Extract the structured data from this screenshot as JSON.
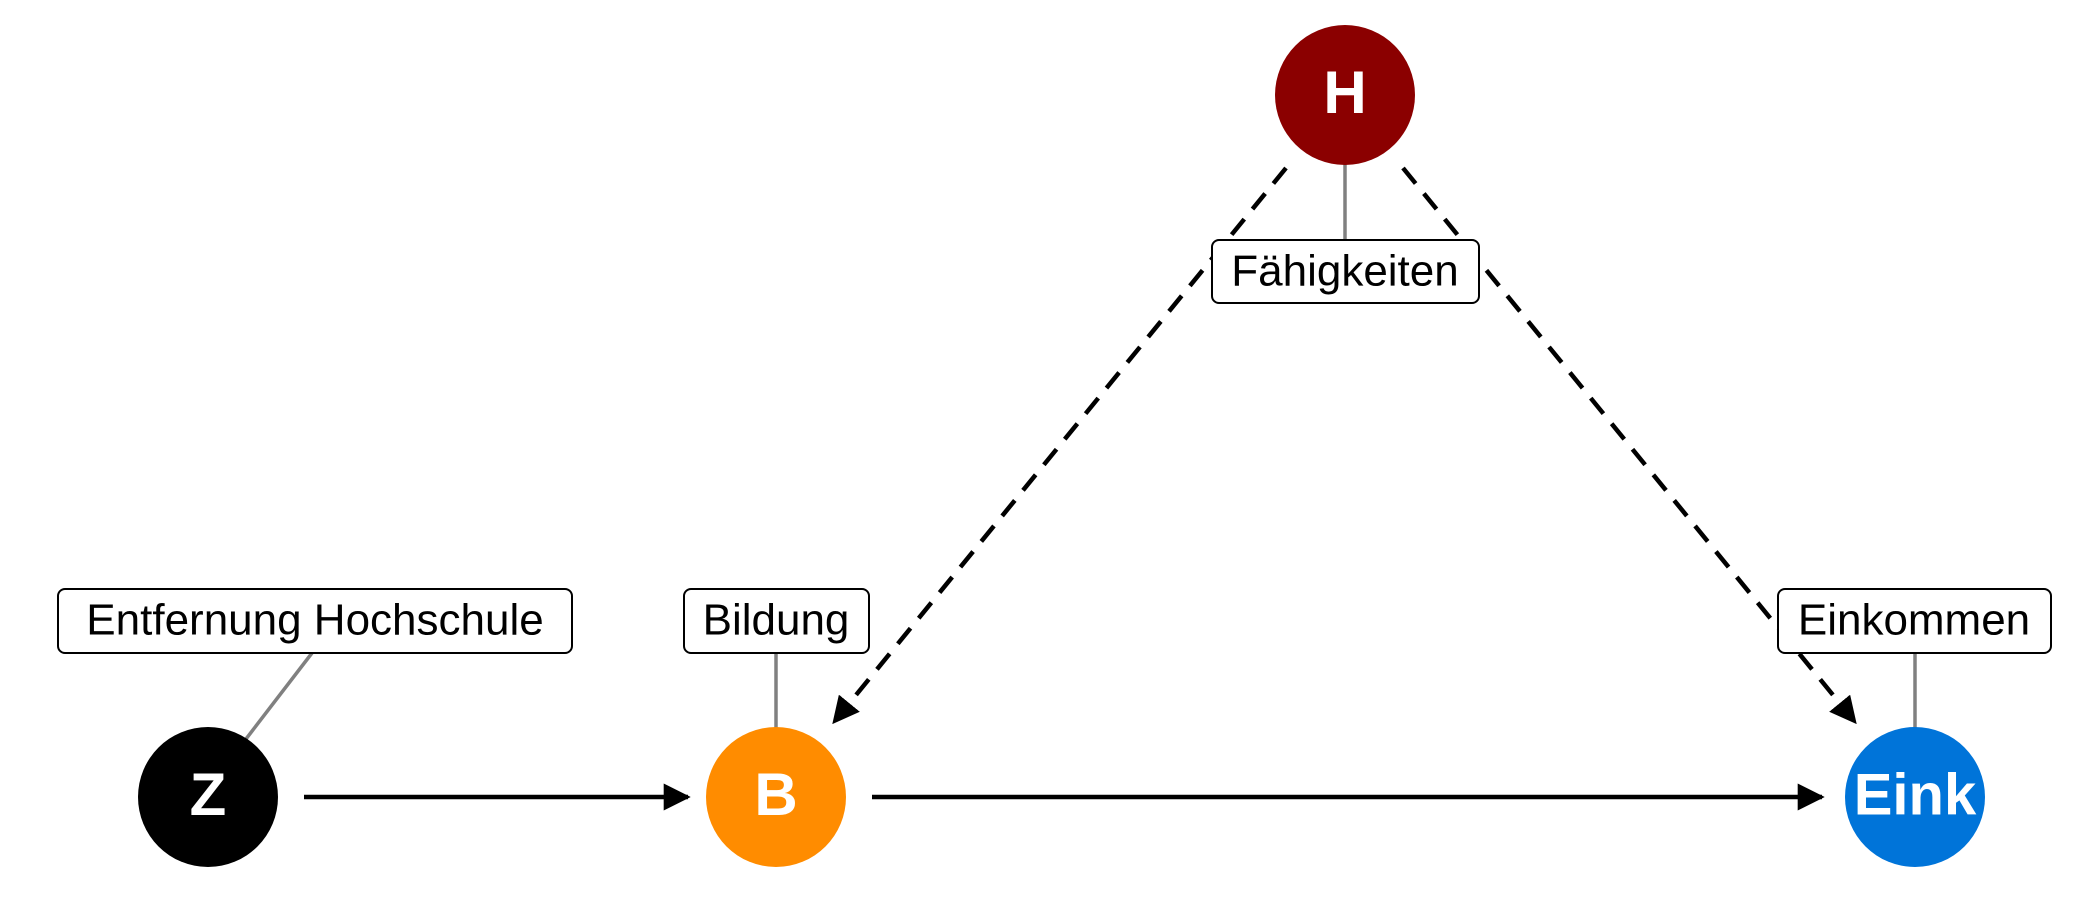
{
  "nodes": {
    "z": {
      "label": "Z",
      "description": "Entfernung Hochschule",
      "color": "#000000"
    },
    "b": {
      "label": "B",
      "description": "Bildung",
      "color": "#FF8C00"
    },
    "eink": {
      "label": "Eink",
      "description": "Einkommen",
      "color": "#0074D9"
    },
    "h": {
      "label": "H",
      "description": "Fähigkeiten",
      "color": "#8B0000"
    }
  },
  "edges": [
    {
      "from": "Z",
      "to": "B",
      "style": "solid"
    },
    {
      "from": "B",
      "to": "Eink",
      "style": "solid"
    },
    {
      "from": "H",
      "to": "B",
      "style": "dashed"
    },
    {
      "from": "H",
      "to": "Eink",
      "style": "dashed"
    }
  ]
}
